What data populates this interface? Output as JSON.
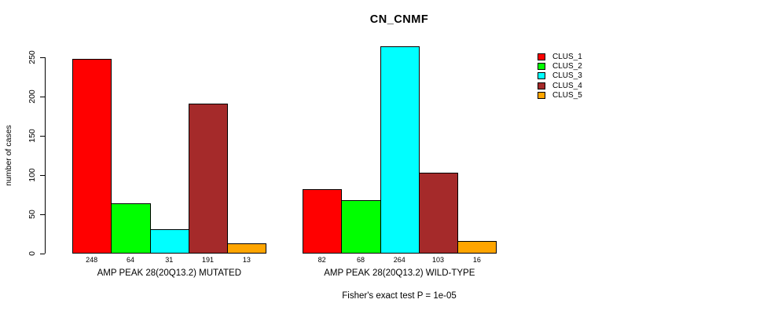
{
  "chart_data": {
    "type": "bar",
    "title": "CN_CNMF",
    "ylabel": "number of cases",
    "xlabel": "",
    "ylim": [
      0,
      250
    ],
    "yticks": [
      0,
      50,
      100,
      150,
      200,
      250
    ],
    "grid": false,
    "legend_position": "right",
    "legend": [
      "CLUS_1",
      "CLUS_2",
      "CLUS_3",
      "CLUS_4",
      "CLUS_5"
    ],
    "colors": [
      "#ff0000",
      "#00ff00",
      "#00ffff",
      "#a52a2a",
      "#ffa500"
    ],
    "groups": [
      {
        "label": "AMP PEAK 28(20Q13.2) MUTATED",
        "values": [
          248,
          64,
          31,
          191,
          13
        ]
      },
      {
        "label": "AMP PEAK 28(20Q13.2) WILD-TYPE",
        "values": [
          82,
          68,
          264,
          103,
          16
        ]
      }
    ],
    "footnote": "Fisher's exact test P = 1e-05"
  }
}
